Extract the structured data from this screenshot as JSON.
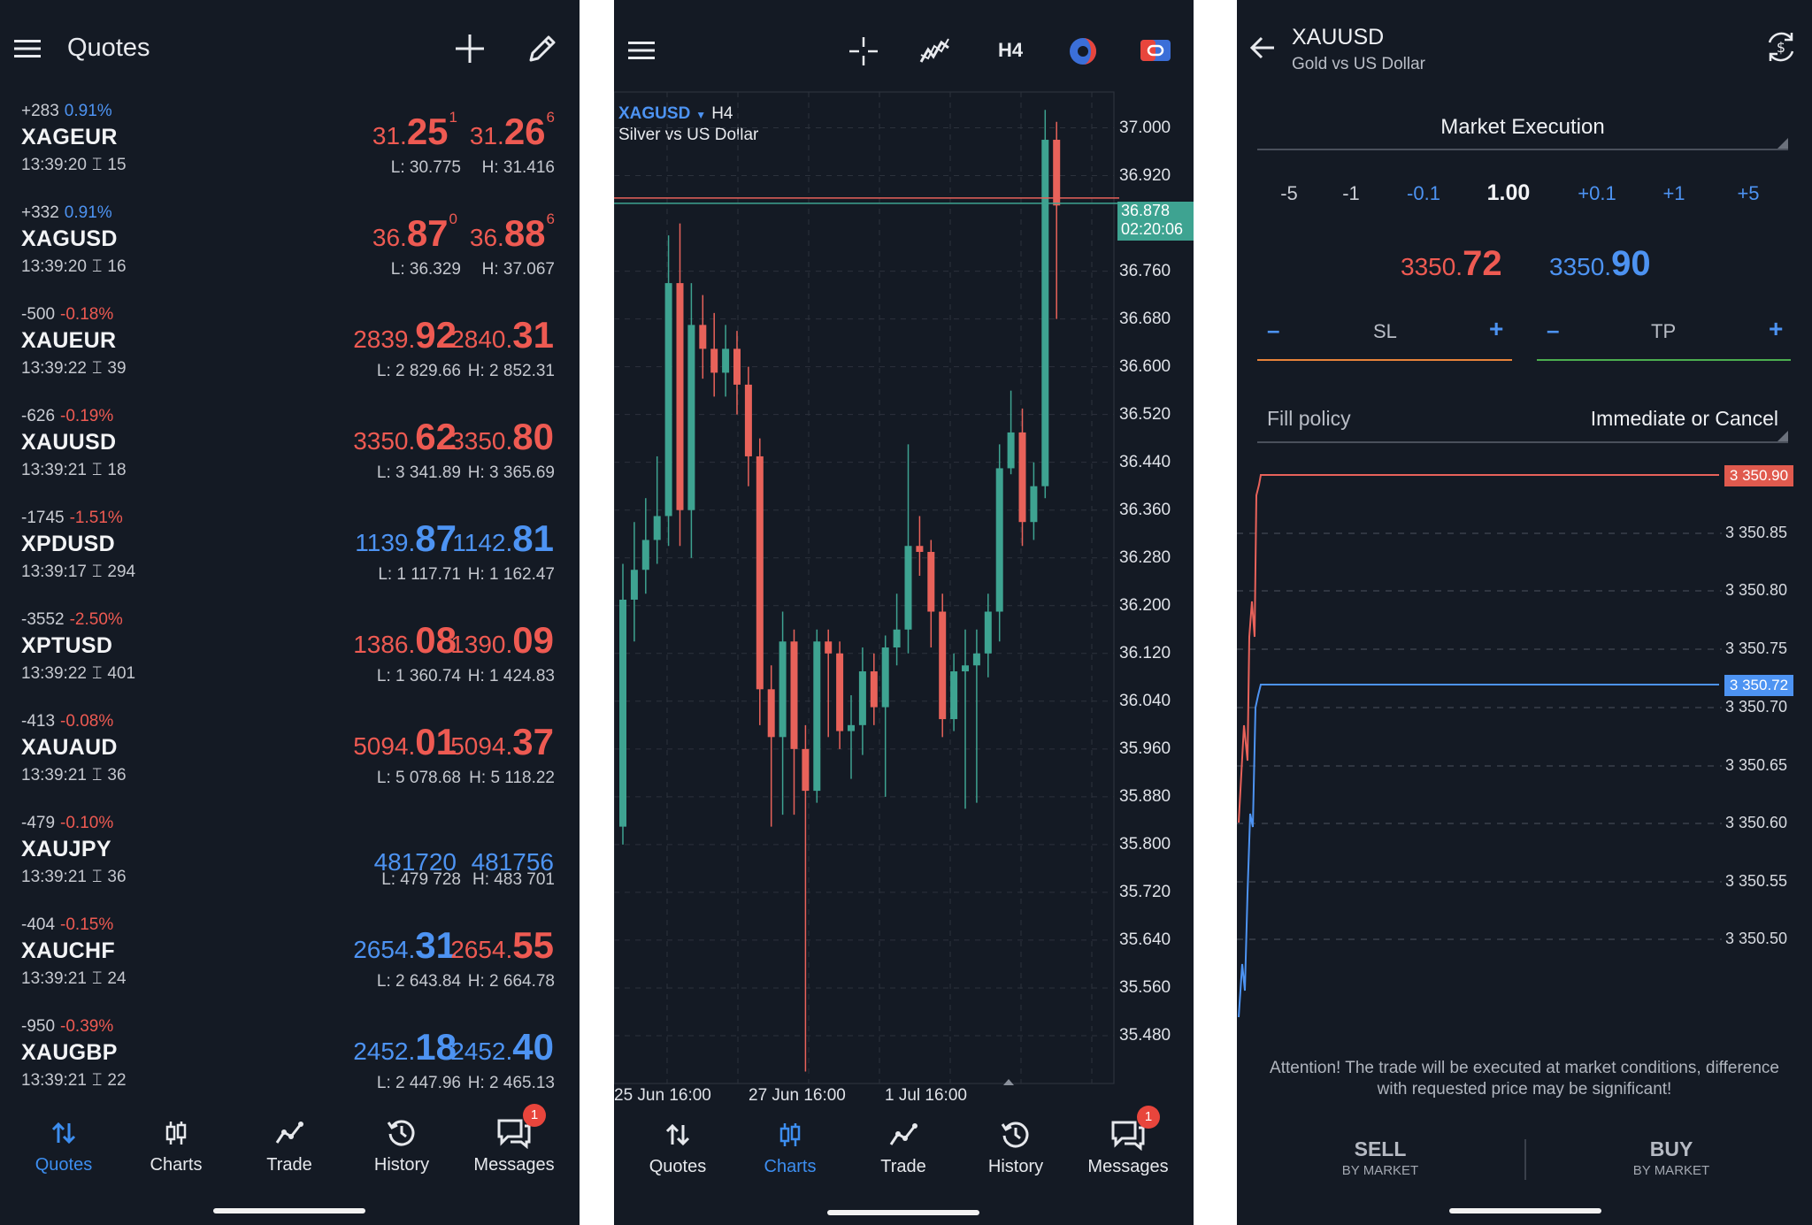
{
  "quotes_panel": {
    "title": "Quotes",
    "rows": [
      {
        "change": "+283",
        "pct": "0.91%",
        "pct_color": "#4d93f2",
        "symbol": "XAGEUR",
        "time": "13:39:20",
        "spread": "15",
        "bid_pre": "31.",
        "bid_big": "25",
        "bid_sup": "1",
        "bid_color": "#ee5a52",
        "ask_pre": "31.",
        "ask_big": "26",
        "ask_sup": "6",
        "ask_color": "#ee5a52",
        "low": "L: 30.775",
        "high": "H: 31.416"
      },
      {
        "change": "+332",
        "pct": "0.91%",
        "pct_color": "#4d93f2",
        "symbol": "XAGUSD",
        "time": "13:39:20",
        "spread": "16",
        "bid_pre": "36.",
        "bid_big": "87",
        "bid_sup": "0",
        "bid_color": "#ee5a52",
        "ask_pre": "36.",
        "ask_big": "88",
        "ask_sup": "6",
        "ask_color": "#ee5a52",
        "low": "L: 36.329",
        "high": "H: 37.067"
      },
      {
        "change": "-500",
        "pct": "-0.18%",
        "pct_color": "#ee5a52",
        "symbol": "XAUEUR",
        "time": "13:39:22",
        "spread": "39",
        "bid_pre": "2839.",
        "bid_big": "92",
        "bid_sup": "",
        "bid_color": "#ee5a52",
        "ask_pre": "2840.",
        "ask_big": "31",
        "ask_sup": "",
        "ask_color": "#ee5a52",
        "low": "L: 2 829.66",
        "high": "H: 2 852.31"
      },
      {
        "change": "-626",
        "pct": "-0.19%",
        "pct_color": "#ee5a52",
        "symbol": "XAUUSD",
        "time": "13:39:21",
        "spread": "18",
        "bid_pre": "3350.",
        "bid_big": "62",
        "bid_sup": "",
        "bid_color": "#ee5a52",
        "ask_pre": "3350.",
        "ask_big": "80",
        "ask_sup": "",
        "ask_color": "#ee5a52",
        "low": "L: 3 341.89",
        "high": "H: 3 365.69"
      },
      {
        "change": "-1745",
        "pct": "-1.51%",
        "pct_color": "#ee5a52",
        "symbol": "XPDUSD",
        "time": "13:39:17",
        "spread": "294",
        "bid_pre": "1139.",
        "bid_big": "87",
        "bid_sup": "",
        "bid_color": "#4d93f2",
        "ask_pre": "1142.",
        "ask_big": "81",
        "ask_sup": "",
        "ask_color": "#4d93f2",
        "low": "L: 1 117.71",
        "high": "H: 1 162.47"
      },
      {
        "change": "-3552",
        "pct": "-2.50%",
        "pct_color": "#ee5a52",
        "symbol": "XPTUSD",
        "time": "13:39:22",
        "spread": "401",
        "bid_pre": "1386.",
        "bid_big": "08",
        "bid_sup": "",
        "bid_color": "#ee5a52",
        "ask_pre": "1390.",
        "ask_big": "09",
        "ask_sup": "",
        "ask_color": "#ee5a52",
        "low": "L: 1 360.74",
        "high": "H: 1 424.83"
      },
      {
        "change": "-413",
        "pct": "-0.08%",
        "pct_color": "#ee5a52",
        "symbol": "XAUAUD",
        "time": "13:39:21",
        "spread": "36",
        "bid_pre": "5094.",
        "bid_big": "01",
        "bid_sup": "",
        "bid_color": "#ee5a52",
        "ask_pre": "5094.",
        "ask_big": "37",
        "ask_sup": "",
        "ask_color": "#ee5a52",
        "low": "L: 5 078.68",
        "high": "H: 5 118.22"
      },
      {
        "change": "-479",
        "pct": "-0.10%",
        "pct_color": "#ee5a52",
        "symbol": "XAUJPY",
        "time": "13:39:21",
        "spread": "36",
        "bid_pre": "481720",
        "bid_big": "",
        "bid_sup": "",
        "bid_color": "#4d93f2",
        "ask_pre": "481756",
        "ask_big": "",
        "ask_sup": "",
        "ask_color": "#4d93f2",
        "low": "L: 479 728",
        "high": "H: 483 701"
      },
      {
        "change": "-404",
        "pct": "-0.15%",
        "pct_color": "#ee5a52",
        "symbol": "XAUCHF",
        "time": "13:39:21",
        "spread": "24",
        "bid_pre": "2654.",
        "bid_big": "31",
        "bid_sup": "",
        "bid_color": "#4d93f2",
        "ask_pre": "2654.",
        "ask_big": "55",
        "ask_sup": "",
        "ask_color": "#ee5a52",
        "low": "L: 2 643.84",
        "high": "H: 2 664.78"
      },
      {
        "change": "-950",
        "pct": "-0.39%",
        "pct_color": "#ee5a52",
        "symbol": "XAUGBP",
        "time": "13:39:21",
        "spread": "22",
        "bid_pre": "2452.",
        "bid_big": "18",
        "bid_sup": "",
        "bid_color": "#4d93f2",
        "ask_pre": "2452.",
        "ask_big": "40",
        "ask_sup": "",
        "ask_color": "#4d93f2",
        "low": "L: 2 447.96",
        "high": "H: 2 465.13"
      }
    ]
  },
  "nav": {
    "items": [
      "Quotes",
      "Charts",
      "Trade",
      "History",
      "Messages"
    ],
    "messages_badge": "1"
  },
  "chart_panel": {
    "toolbar": {
      "timeframe": "H4"
    },
    "symbol": "XAGUSD",
    "timeframe": "H4",
    "description": "Silver vs US Dollar",
    "current_price": "36.878",
    "countdown": "02:20:06",
    "chart_data": {
      "type": "candlestick",
      "y_ticks": [
        "37.000",
        "36.920",
        "36.760",
        "36.680",
        "36.600",
        "36.520",
        "36.440",
        "36.360",
        "36.280",
        "36.200",
        "36.120",
        "36.040",
        "35.960",
        "35.880",
        "35.800",
        "35.720",
        "35.640",
        "35.560",
        "35.480"
      ],
      "x_ticks": [
        "25 Jun 16:00",
        "27 Jun 16:00",
        "1 Jul 16:00"
      ],
      "ylim": [
        35.4,
        37.06
      ],
      "current_price": 36.878,
      "candles": [
        [
          35.83,
          36.21,
          36.27,
          35.8
        ],
        [
          36.21,
          36.26,
          36.34,
          36.14
        ],
        [
          36.26,
          36.31,
          36.38,
          36.22
        ],
        [
          36.31,
          36.35,
          36.45,
          36.27
        ],
        [
          36.35,
          36.74,
          36.82,
          36.3
        ],
        [
          36.74,
          36.36,
          36.84,
          36.3
        ],
        [
          36.36,
          36.67,
          36.74,
          36.28
        ],
        [
          36.67,
          36.63,
          36.72,
          36.58
        ],
        [
          36.63,
          36.59,
          36.69,
          36.55
        ],
        [
          36.59,
          36.63,
          36.67,
          36.55
        ],
        [
          36.63,
          36.57,
          36.66,
          36.52
        ],
        [
          36.57,
          36.45,
          36.6,
          36.4
        ],
        [
          36.45,
          36.06,
          36.48,
          36.0
        ],
        [
          36.06,
          35.98,
          36.1,
          35.83
        ],
        [
          35.98,
          36.14,
          36.19,
          35.85
        ],
        [
          36.14,
          35.96,
          36.16,
          35.85
        ],
        [
          35.96,
          35.89,
          36.0,
          35.42
        ],
        [
          35.89,
          36.14,
          36.16,
          35.87
        ],
        [
          36.14,
          36.12,
          36.16,
          35.98
        ],
        [
          36.12,
          35.99,
          36.14,
          35.96
        ],
        [
          35.99,
          36.0,
          36.05,
          35.91
        ],
        [
          36.0,
          36.09,
          36.13,
          35.95
        ],
        [
          36.09,
          36.03,
          36.12,
          36.0
        ],
        [
          36.03,
          36.13,
          36.15,
          35.88
        ],
        [
          36.13,
          36.16,
          36.22,
          36.1
        ],
        [
          36.16,
          36.3,
          36.47,
          36.12
        ],
        [
          36.3,
          36.29,
          36.35,
          36.25
        ],
        [
          36.29,
          36.19,
          36.31,
          36.13
        ],
        [
          36.19,
          36.01,
          36.22,
          35.98
        ],
        [
          36.01,
          36.09,
          36.12,
          35.99
        ],
        [
          36.09,
          36.1,
          36.16,
          35.86
        ],
        [
          36.1,
          36.12,
          36.16,
          35.87
        ],
        [
          36.12,
          36.19,
          36.22,
          36.08
        ],
        [
          36.19,
          36.43,
          36.47,
          36.14
        ],
        [
          36.43,
          36.49,
          36.56,
          36.42
        ],
        [
          36.49,
          36.34,
          36.53,
          36.3
        ],
        [
          36.34,
          36.4,
          36.44,
          36.31
        ],
        [
          36.4,
          36.98,
          37.03,
          36.38
        ],
        [
          36.98,
          36.87,
          37.01,
          36.68
        ]
      ]
    }
  },
  "trade_panel": {
    "title": "XAUUSD",
    "subtitle": "Gold vs US Dollar",
    "execution": "Market Execution",
    "volumes": [
      "-5",
      "-1",
      "-0.1",
      "1.00",
      "+0.1",
      "+1",
      "+5"
    ],
    "sell_price_pre": "3350.",
    "sell_price_big": "72",
    "buy_price_pre": "3350.",
    "buy_price_big": "90",
    "sl_label": "SL",
    "tp_label": "TP",
    "minus": "–",
    "plus": "+",
    "fill_label": "Fill policy",
    "fill_value": "Immediate or Cancel",
    "ask_tag": "3 350.90",
    "bid_tag": "3 350.72",
    "y_ticks": [
      "3 350.85",
      "3 350.80",
      "3 350.75",
      "3 350.70",
      "3 350.65",
      "3 350.60",
      "3 350.55",
      "3 350.50"
    ],
    "disclaimer": "Attention! The trade will be executed at market conditions, difference with requested price may be significant!",
    "sell_label": "SELL",
    "buy_label": "BUY",
    "by_market": "BY MARKET",
    "colors": {
      "sell": "#ee5a52",
      "buy": "#4d93f2",
      "sl": "#e8833a",
      "tp": "#4cae4f"
    }
  }
}
